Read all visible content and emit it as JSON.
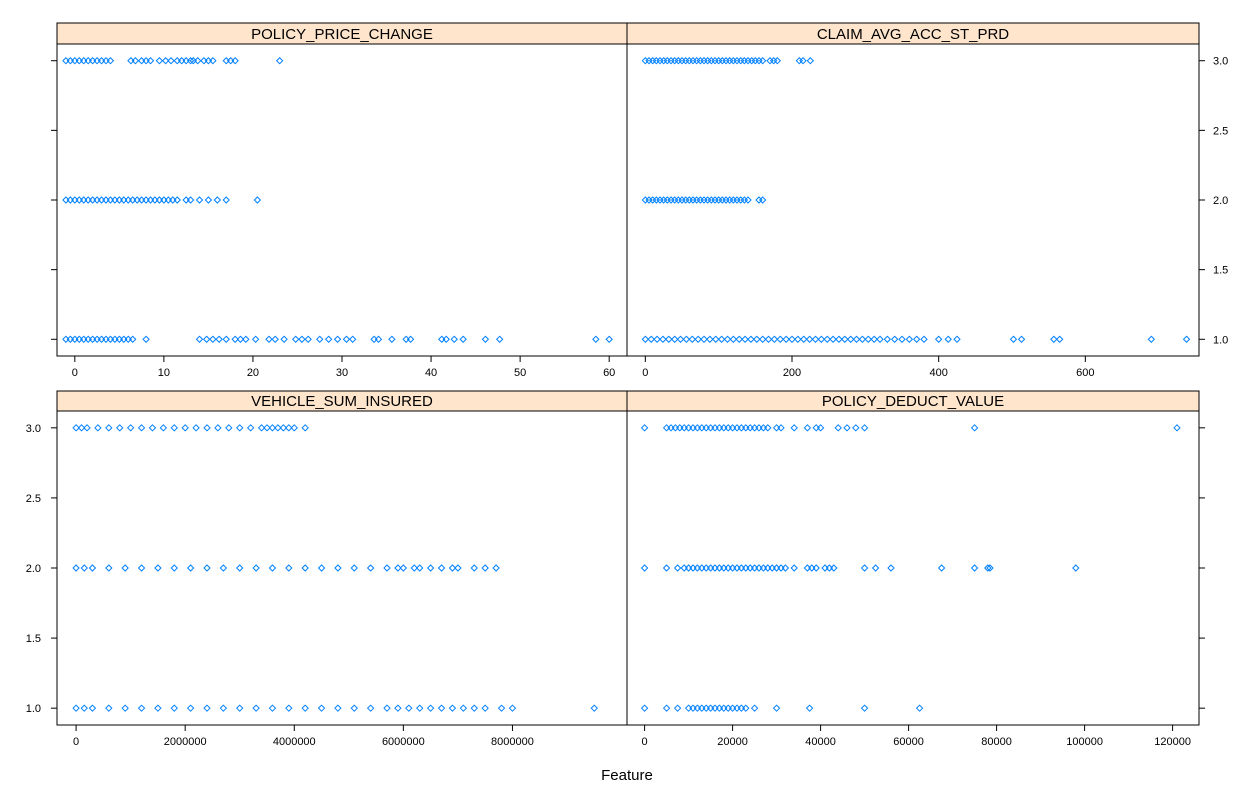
{
  "chart_data": {
    "type": "scatter",
    "xlabel": "Feature",
    "ylabel": "",
    "colors": {
      "strip": "#FFE5CC",
      "point": "#0080FF"
    },
    "grid": false,
    "panels": [
      {
        "title": "POLICY_PRICE_CHANGE",
        "xlim": [
          -2,
          62
        ],
        "ylim": [
          0.88,
          3.12
        ],
        "xticks": [
          0,
          10,
          20,
          30,
          40,
          50,
          60
        ],
        "xtick_labels": [
          "0",
          "10",
          "20",
          "30",
          "40",
          "50",
          "60"
        ],
        "yticks": [
          1.0,
          1.5,
          2.0,
          2.5,
          3.0
        ],
        "ytick_labels": [
          "1.0",
          "1.5",
          "2.0",
          "2.5",
          "3.0"
        ],
        "series": [
          {
            "y": 3,
            "x": [
              -1,
              -0.5,
              0,
              0.5,
              1,
              1.5,
              2,
              2.5,
              3,
              3.5,
              4,
              6.3,
              6.8,
              7.5,
              8,
              8.5,
              9.5,
              10.2,
              10.8,
              11.5,
              12,
              12.5,
              13,
              13.3,
              13.8,
              14.5,
              15,
              15.5,
              17,
              17.5,
              18,
              23
            ]
          },
          {
            "y": 2,
            "x": [
              -1,
              -0.5,
              0,
              0.5,
              1,
              1.5,
              2,
              2.5,
              3,
              3.5,
              4,
              4.5,
              5,
              5.5,
              6,
              6.5,
              7,
              7.5,
              8,
              8.5,
              9,
              9.5,
              10,
              10.5,
              11,
              11.5,
              12.5,
              13,
              14,
              15,
              16,
              17,
              20.5
            ]
          },
          {
            "y": 1,
            "x": [
              -1,
              -0.5,
              0,
              0.5,
              1,
              1.5,
              2,
              2.5,
              3,
              3.5,
              4,
              4.5,
              5,
              5.5,
              6,
              6.5,
              8,
              14,
              14.8,
              15.5,
              16.2,
              17,
              18,
              18.6,
              19.2,
              20.3,
              21.8,
              22.5,
              23.5,
              24.8,
              25.5,
              26.2,
              27.5,
              28.5,
              29.5,
              30.5,
              31.2,
              33.6,
              34.1,
              35.6,
              37.2,
              37.7,
              41.2,
              41.7,
              42.6,
              43.6,
              46.1,
              47.7,
              58.5,
              60
            ]
          }
        ]
      },
      {
        "title": "CLAIM_AVG_ACC_ST_PRD",
        "xlim": [
          -25,
          755
        ],
        "ylim": [
          0.88,
          3.12
        ],
        "xticks": [
          0,
          200,
          400,
          600
        ],
        "xtick_labels": [
          "0",
          "200",
          "400",
          "600"
        ],
        "yticks": [
          1.0,
          1.5,
          2.0,
          2.5,
          3.0
        ],
        "ytick_labels": [
          "1.0",
          "1.5",
          "2.0",
          "2.5",
          "3.0"
        ],
        "series": [
          {
            "y": 3,
            "x": [
              0,
              5,
              10,
              15,
              20,
              25,
              30,
              35,
              40,
              45,
              50,
              55,
              60,
              65,
              70,
              75,
              80,
              85,
              90,
              95,
              100,
              105,
              110,
              115,
              120,
              125,
              130,
              135,
              140,
              145,
              150,
              155,
              160,
              170,
              175,
              180,
              210,
              215,
              225
            ]
          },
          {
            "y": 2,
            "x": [
              0,
              5,
              10,
              15,
              20,
              25,
              30,
              35,
              40,
              45,
              50,
              55,
              60,
              65,
              70,
              75,
              80,
              85,
              90,
              95,
              100,
              105,
              110,
              115,
              120,
              125,
              130,
              135,
              140,
              155,
              160
            ]
          },
          {
            "y": 1,
            "x": [
              0,
              8,
              16,
              24,
              32,
              40,
              48,
              56,
              64,
              72,
              80,
              88,
              96,
              104,
              112,
              120,
              128,
              136,
              144,
              152,
              160,
              168,
              176,
              184,
              192,
              200,
              208,
              216,
              224,
              232,
              240,
              248,
              256,
              264,
              272,
              280,
              288,
              296,
              304,
              312,
              320,
              330,
              340,
              350,
              360,
              370,
              380,
              400,
              413,
              425,
              502,
              513,
              557,
              565,
              690,
              738
            ]
          }
        ]
      },
      {
        "title": "VEHICLE_SUM_INSURED",
        "xlim": [
          -350000,
          10100000
        ],
        "ylim": [
          0.88,
          3.12
        ],
        "xticks": [
          0,
          2000000,
          4000000,
          6000000,
          8000000
        ],
        "xtick_labels": [
          "0",
          "2000000",
          "4000000",
          "6000000",
          "8000000"
        ],
        "yticks": [
          1.0,
          1.5,
          2.0,
          2.5,
          3.0
        ],
        "ytick_labels": [
          "1.0",
          "1.5",
          "2.0",
          "2.5",
          "3.0"
        ],
        "series": [
          {
            "y": 3,
            "x": [
              0,
              100000,
              200000,
              400000,
              600000,
              800000,
              1000000,
              1200000,
              1400000,
              1600000,
              1800000,
              2000000,
              2200000,
              2400000,
              2600000,
              2800000,
              3000000,
              3200000,
              3400000,
              3500000,
              3600000,
              3700000,
              3800000,
              3900000,
              4000000,
              4200000
            ]
          },
          {
            "y": 2,
            "x": [
              0,
              150000,
              300000,
              600000,
              900000,
              1200000,
              1500000,
              1800000,
              2100000,
              2400000,
              2700000,
              3000000,
              3300000,
              3600000,
              3900000,
              4200000,
              4500000,
              4800000,
              5100000,
              5400000,
              5700000,
              5900000,
              6000000,
              6200000,
              6300000,
              6500000,
              6700000,
              6900000,
              7000000,
              7300000,
              7500000,
              7700000
            ]
          },
          {
            "y": 1,
            "x": [
              0,
              150000,
              300000,
              600000,
              900000,
              1200000,
              1500000,
              1800000,
              2100000,
              2400000,
              2700000,
              3000000,
              3300000,
              3600000,
              3900000,
              4200000,
              4500000,
              4800000,
              5100000,
              5400000,
              5700000,
              5900000,
              6100000,
              6300000,
              6500000,
              6700000,
              6900000,
              7100000,
              7300000,
              7500000,
              7800000,
              8000000,
              9500000
            ]
          }
        ]
      },
      {
        "title": "POLICY_DEDUCT_VALUE",
        "xlim": [
          -4000,
          126000
        ],
        "ylim": [
          0.88,
          3.12
        ],
        "xticks": [
          0,
          20000,
          40000,
          60000,
          80000,
          100000,
          120000
        ],
        "xtick_labels": [
          "0",
          "20000",
          "40000",
          "60000",
          "80000",
          "100000",
          "120000"
        ],
        "yticks": [
          1.0,
          1.5,
          2.0,
          2.5,
          3.0
        ],
        "ytick_labels": [
          "1.0",
          "1.5",
          "2.0",
          "2.5",
          "3.0"
        ],
        "series": [
          {
            "y": 3,
            "x": [
              0,
              5000,
              6000,
              7000,
              8000,
              9000,
              10000,
              11000,
              12000,
              13000,
              14000,
              15000,
              16000,
              17000,
              18000,
              19000,
              20000,
              21000,
              22000,
              23000,
              24000,
              25000,
              26000,
              27000,
              28000,
              30000,
              31000,
              34000,
              37000,
              39000,
              40000,
              44000,
              46000,
              48000,
              50000,
              75000,
              121000
            ]
          },
          {
            "y": 2,
            "x": [
              0,
              5000,
              7500,
              9000,
              10000,
              11000,
              12000,
              13000,
              14000,
              15000,
              16000,
              17000,
              18000,
              19000,
              20000,
              21000,
              22000,
              23000,
              24000,
              25000,
              26000,
              27000,
              28000,
              29000,
              30000,
              31000,
              32000,
              34000,
              37000,
              38000,
              39000,
              41000,
              42000,
              43000,
              50000,
              52500,
              56000,
              67500,
              75000,
              78000,
              78500,
              98000
            ]
          },
          {
            "y": 1,
            "x": [
              0,
              5000,
              7500,
              10000,
              11000,
              12000,
              13000,
              14000,
              15000,
              16000,
              17000,
              18000,
              19000,
              20000,
              21000,
              22000,
              23000,
              25000,
              30000,
              37500,
              50000,
              62500
            ]
          }
        ]
      }
    ]
  }
}
